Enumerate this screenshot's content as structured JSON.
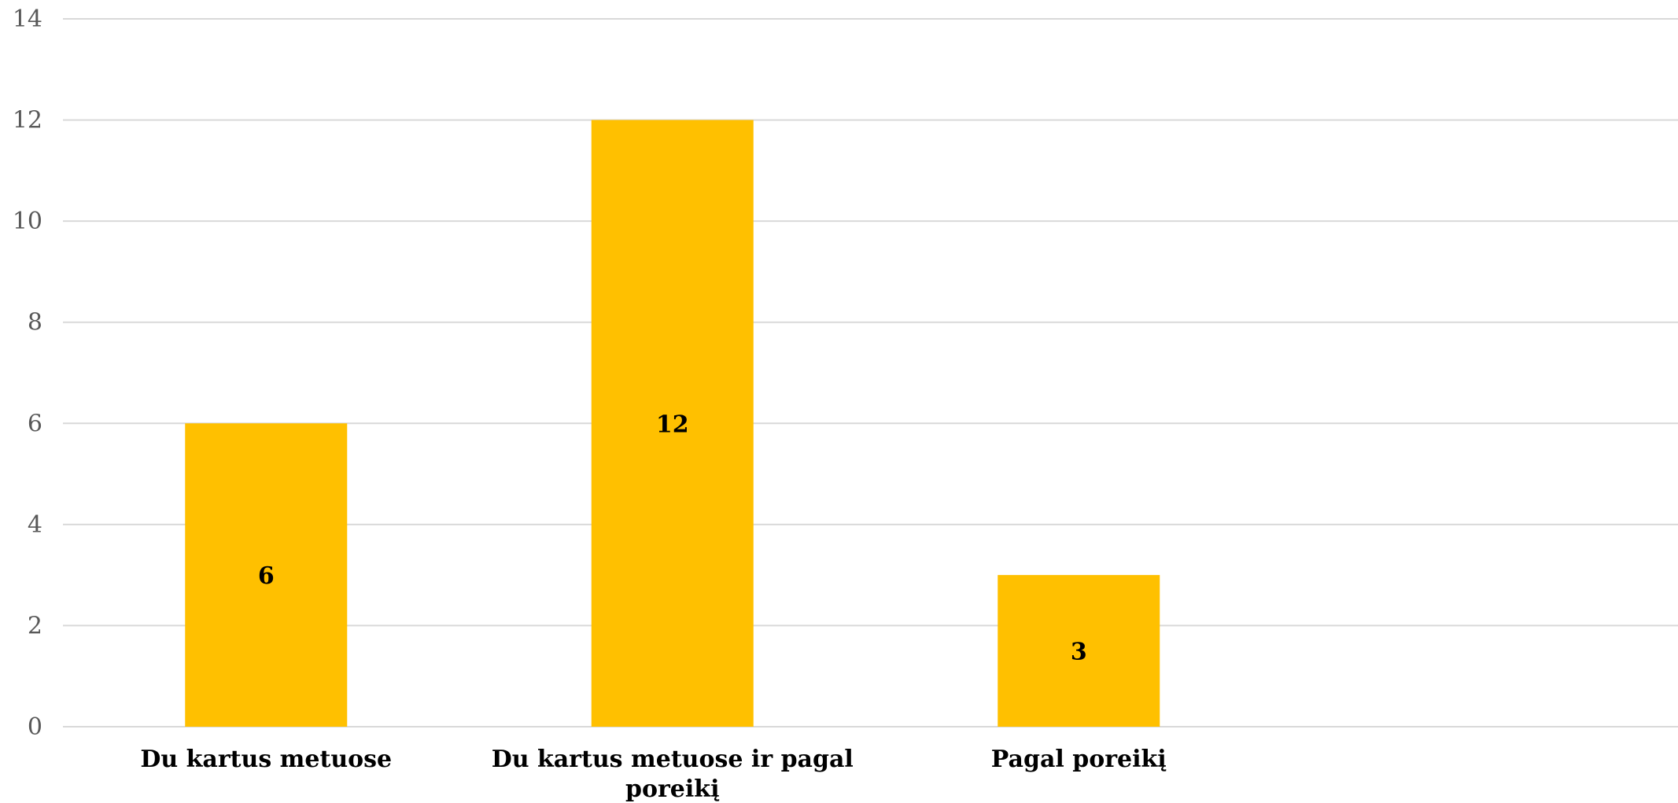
{
  "chart_data": {
    "type": "bar",
    "categories": [
      "Du kartus metuose",
      "Du kartus metuose ir pagal poreikį",
      "Pagal poreikį"
    ],
    "category_lines": [
      [
        "Du kartus metuose"
      ],
      [
        "Du kartus metuose ir pagal",
        "poreikį"
      ],
      [
        "Pagal poreikį"
      ]
    ],
    "values": [
      6,
      12,
      3
    ],
    "value_labels": [
      "6",
      "12",
      "3"
    ],
    "y_ticks": [
      "0",
      "2",
      "4",
      "6",
      "8",
      "10",
      "12",
      "14"
    ],
    "ylim": [
      0,
      14
    ],
    "grid": true,
    "legend": "none",
    "colors": {
      "bar": "#FFC000",
      "grid": "#D9D9D9",
      "tick_text": "#595959",
      "label_text": "#000000"
    }
  }
}
